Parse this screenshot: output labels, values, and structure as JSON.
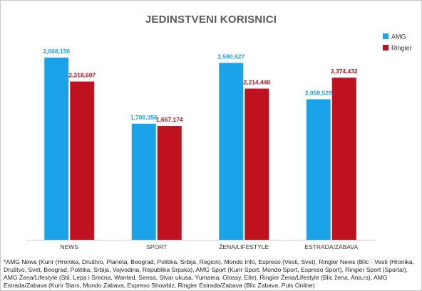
{
  "chart_data": {
    "type": "bar",
    "title": "JEDINSTVENI KORISNICI",
    "categories": [
      "NEWS",
      "SPORT",
      "ŽENA/LIFESTYLE",
      "ESTRADA/ZABAVA"
    ],
    "series": [
      {
        "name": "AMG",
        "color": "#1aa3e8",
        "values": [
          2668156,
          1700356,
          2590527,
          2058529
        ],
        "labels": [
          "2,668,156",
          "1,700,356",
          "2,590,527",
          "2,058,529"
        ]
      },
      {
        "name": "Ringier",
        "color": "#c0111f",
        "values": [
          2318607,
          1667174,
          2214448,
          2374432
        ],
        "labels": [
          "2,318,607",
          "1,667,174",
          "2,214,448",
          "2,374,432"
        ]
      }
    ],
    "ylim": [
      0,
      3000000
    ],
    "grid": false,
    "legend": "top-right",
    "footnote": "*AMG News (Kurir (Hronika, Društvo, Planeta, Beograd, Politika, Srbija, Region), Mondo Info, Espreso (Vesti, Svet), Ringier News (Blic - Vesti (Hronika, Društvo, Svet, Beograd, Politika, Srbija, Vojvodina, Republika Srpska), AMG Sport (Kurir Sport, Mondo Sport, Espreso Sport), Ringier Sport (Sportal), AMG Žena/Lifestyle (Stil, Lepa i Srećna, Wanted, Sensa, Stvar ukusa, Yumama, Glossy, Elle), Ringier Žena/Lifestyle (Blic žena, Ana.rs), AMG Estrada/Zabava (Kurir Stars, Mondo Zabava, Espreso Showbiz, Ringier Estrada/Zabava (Blic Zabava, Puls Online)"
  }
}
